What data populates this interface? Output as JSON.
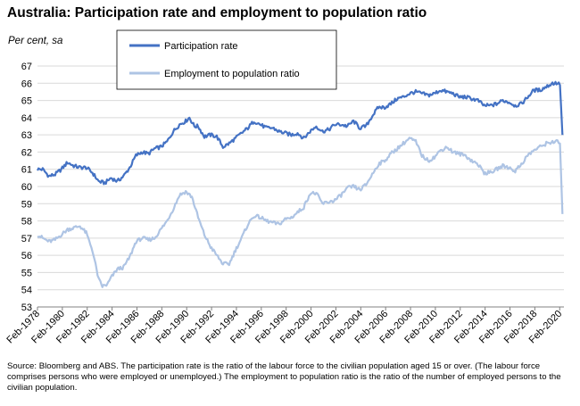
{
  "header": {
    "title": "Australia: Participation rate and employment to population ratio",
    "unit_label": "Per cent, sa"
  },
  "footer": {
    "source": "Source: Bloomberg and ABS.  The participation rate is the ratio of the labour force to the civilian population aged 15 or over. (The labour force comprises persons who were employed or unemployed.)  The employment to population ratio is the ratio of the number of employed persons to the civilian population."
  },
  "colors": {
    "participation": "#4472c4",
    "employment": "#aec4e4",
    "grid": "#d9d9d9",
    "axis": "#808080"
  },
  "chart_data": {
    "type": "line",
    "title": "Australia: Participation rate and employment to population ratio",
    "ylabel": "Per cent, sa",
    "xlabel": "",
    "ylim": [
      53,
      67
    ],
    "yticks": [
      53,
      54,
      55,
      56,
      57,
      58,
      59,
      60,
      61,
      62,
      63,
      64,
      65,
      66,
      67
    ],
    "xlim": [
      1978.08,
      2020.42
    ],
    "xticks": [
      {
        "x": 1978.08,
        "label": "Feb-1978"
      },
      {
        "x": 1980.08,
        "label": "Feb-1980"
      },
      {
        "x": 1982.08,
        "label": "Feb-1982"
      },
      {
        "x": 1984.08,
        "label": "Feb-1984"
      },
      {
        "x": 1986.08,
        "label": "Feb-1986"
      },
      {
        "x": 1988.08,
        "label": "Feb-1988"
      },
      {
        "x": 1990.08,
        "label": "Feb-1990"
      },
      {
        "x": 1992.08,
        "label": "Feb-1992"
      },
      {
        "x": 1994.08,
        "label": "Feb-1994"
      },
      {
        "x": 1996.08,
        "label": "Feb-1996"
      },
      {
        "x": 1998.08,
        "label": "Feb-1998"
      },
      {
        "x": 2000.08,
        "label": "Feb-2000"
      },
      {
        "x": 2002.08,
        "label": "Feb-2002"
      },
      {
        "x": 2004.08,
        "label": "Feb-2004"
      },
      {
        "x": 2006.08,
        "label": "Feb-2006"
      },
      {
        "x": 2008.08,
        "label": "Feb-2008"
      },
      {
        "x": 2010.08,
        "label": "Feb-2010"
      },
      {
        "x": 2012.08,
        "label": "Feb-2012"
      },
      {
        "x": 2014.08,
        "label": "Feb-2014"
      },
      {
        "x": 2016.08,
        "label": "Feb-2016"
      },
      {
        "x": 2018.08,
        "label": "Feb-2018"
      },
      {
        "x": 2020.08,
        "label": "Feb-2020"
      }
    ],
    "legend_position": "top-center",
    "series": [
      {
        "name": "Participation rate",
        "color": "#4472c4",
        "points": [
          [
            1978.08,
            61.0
          ],
          [
            1978.5,
            61.0
          ],
          [
            1979.0,
            60.6
          ],
          [
            1979.5,
            60.7
          ],
          [
            1980.0,
            61.0
          ],
          [
            1980.5,
            61.4
          ],
          [
            1981.0,
            61.2
          ],
          [
            1981.5,
            61.1
          ],
          [
            1982.0,
            61.1
          ],
          [
            1982.5,
            60.8
          ],
          [
            1983.0,
            60.3
          ],
          [
            1983.5,
            60.2
          ],
          [
            1984.0,
            60.5
          ],
          [
            1984.5,
            60.3
          ],
          [
            1985.0,
            60.6
          ],
          [
            1985.5,
            61.1
          ],
          [
            1986.0,
            61.8
          ],
          [
            1986.5,
            62.0
          ],
          [
            1987.0,
            61.9
          ],
          [
            1987.5,
            62.2
          ],
          [
            1988.0,
            62.3
          ],
          [
            1988.5,
            62.6
          ],
          [
            1989.0,
            63.2
          ],
          [
            1989.5,
            63.6
          ],
          [
            1990.0,
            63.8
          ],
          [
            1990.3,
            64.0
          ],
          [
            1990.7,
            63.5
          ],
          [
            1991.0,
            63.5
          ],
          [
            1991.5,
            62.9
          ],
          [
            1992.0,
            63.0
          ],
          [
            1992.5,
            62.9
          ],
          [
            1993.0,
            62.3
          ],
          [
            1993.5,
            62.5
          ],
          [
            1994.0,
            62.8
          ],
          [
            1994.5,
            63.1
          ],
          [
            1995.0,
            63.4
          ],
          [
            1995.5,
            63.8
          ],
          [
            1996.0,
            63.6
          ],
          [
            1996.5,
            63.4
          ],
          [
            1997.0,
            63.4
          ],
          [
            1997.5,
            63.2
          ],
          [
            1998.0,
            63.1
          ],
          [
            1998.5,
            63.0
          ],
          [
            1999.0,
            63.1
          ],
          [
            1999.5,
            62.8
          ],
          [
            2000.0,
            63.2
          ],
          [
            2000.5,
            63.5
          ],
          [
            2001.0,
            63.2
          ],
          [
            2001.5,
            63.3
          ],
          [
            2002.0,
            63.6
          ],
          [
            2002.5,
            63.6
          ],
          [
            2003.0,
            63.5
          ],
          [
            2003.5,
            63.8
          ],
          [
            2004.0,
            63.4
          ],
          [
            2004.5,
            63.5
          ],
          [
            2005.0,
            64.1
          ],
          [
            2005.5,
            64.6
          ],
          [
            2006.0,
            64.6
          ],
          [
            2006.5,
            64.8
          ],
          [
            2007.0,
            65.1
          ],
          [
            2007.5,
            65.2
          ],
          [
            2008.0,
            65.4
          ],
          [
            2008.5,
            65.5
          ],
          [
            2009.0,
            65.4
          ],
          [
            2009.5,
            65.3
          ],
          [
            2010.0,
            65.4
          ],
          [
            2010.5,
            65.6
          ],
          [
            2011.0,
            65.5
          ],
          [
            2011.5,
            65.4
          ],
          [
            2012.0,
            65.2
          ],
          [
            2012.5,
            65.2
          ],
          [
            2013.0,
            65.1
          ],
          [
            2013.5,
            65.0
          ],
          [
            2014.0,
            64.7
          ],
          [
            2014.5,
            64.7
          ],
          [
            2015.0,
            64.8
          ],
          [
            2015.5,
            65.0
          ],
          [
            2016.0,
            64.9
          ],
          [
            2016.5,
            64.7
          ],
          [
            2017.0,
            64.8
          ],
          [
            2017.5,
            65.2
          ],
          [
            2018.0,
            65.6
          ],
          [
            2018.5,
            65.6
          ],
          [
            2019.0,
            65.8
          ],
          [
            2019.5,
            66.0
          ],
          [
            2019.9,
            66.0
          ],
          [
            2020.1,
            65.9
          ],
          [
            2020.2,
            64.5
          ],
          [
            2020.3,
            63.0
          ]
        ]
      },
      {
        "name": "Employment to population ratio",
        "color": "#aec4e4",
        "points": [
          [
            1978.08,
            57.2
          ],
          [
            1978.5,
            57.0
          ],
          [
            1979.0,
            56.8
          ],
          [
            1979.5,
            56.9
          ],
          [
            1980.0,
            57.2
          ],
          [
            1980.5,
            57.5
          ],
          [
            1981.0,
            57.6
          ],
          [
            1981.5,
            57.7
          ],
          [
            1982.0,
            57.3
          ],
          [
            1982.5,
            56.3
          ],
          [
            1983.0,
            54.6
          ],
          [
            1983.3,
            54.2
          ],
          [
            1983.7,
            54.3
          ],
          [
            1984.0,
            54.7
          ],
          [
            1984.5,
            55.2
          ],
          [
            1985.0,
            55.3
          ],
          [
            1985.5,
            55.9
          ],
          [
            1986.0,
            56.8
          ],
          [
            1986.5,
            57.0
          ],
          [
            1987.0,
            56.9
          ],
          [
            1987.5,
            57.0
          ],
          [
            1988.0,
            57.5
          ],
          [
            1988.5,
            58.0
          ],
          [
            1989.0,
            58.7
          ],
          [
            1989.5,
            59.5
          ],
          [
            1990.0,
            59.7
          ],
          [
            1990.5,
            59.4
          ],
          [
            1991.0,
            58.2
          ],
          [
            1991.5,
            57.2
          ],
          [
            1992.0,
            56.5
          ],
          [
            1992.5,
            56.0
          ],
          [
            1993.0,
            55.5
          ],
          [
            1993.5,
            55.5
          ],
          [
            1994.0,
            56.3
          ],
          [
            1994.5,
            57.0
          ],
          [
            1995.0,
            57.8
          ],
          [
            1995.5,
            58.3
          ],
          [
            1996.0,
            58.2
          ],
          [
            1996.5,
            58.0
          ],
          [
            1997.0,
            57.9
          ],
          [
            1997.5,
            57.8
          ],
          [
            1998.0,
            58.1
          ],
          [
            1998.5,
            58.2
          ],
          [
            1999.0,
            58.5
          ],
          [
            1999.5,
            58.8
          ],
          [
            2000.0,
            59.6
          ],
          [
            2000.5,
            59.6
          ],
          [
            2001.0,
            59.0
          ],
          [
            2001.5,
            59.1
          ],
          [
            2002.0,
            59.2
          ],
          [
            2002.5,
            59.5
          ],
          [
            2003.0,
            59.9
          ],
          [
            2003.5,
            60.0
          ],
          [
            2004.0,
            59.8
          ],
          [
            2004.5,
            60.1
          ],
          [
            2005.0,
            60.7
          ],
          [
            2005.5,
            61.3
          ],
          [
            2006.0,
            61.5
          ],
          [
            2006.5,
            61.9
          ],
          [
            2007.0,
            62.2
          ],
          [
            2007.5,
            62.5
          ],
          [
            2008.0,
            62.8
          ],
          [
            2008.5,
            62.6
          ],
          [
            2009.0,
            61.8
          ],
          [
            2009.5,
            61.5
          ],
          [
            2010.0,
            61.7
          ],
          [
            2010.5,
            62.1
          ],
          [
            2011.0,
            62.3
          ],
          [
            2011.5,
            62.0
          ],
          [
            2012.0,
            61.9
          ],
          [
            2012.5,
            61.8
          ],
          [
            2013.0,
            61.5
          ],
          [
            2013.5,
            61.3
          ],
          [
            2014.0,
            60.8
          ],
          [
            2014.5,
            60.8
          ],
          [
            2015.0,
            61.0
          ],
          [
            2015.5,
            61.2
          ],
          [
            2016.0,
            61.1
          ],
          [
            2016.5,
            60.9
          ],
          [
            2017.0,
            61.3
          ],
          [
            2017.5,
            61.8
          ],
          [
            2018.0,
            62.1
          ],
          [
            2018.5,
            62.3
          ],
          [
            2019.0,
            62.5
          ],
          [
            2019.5,
            62.6
          ],
          [
            2019.9,
            62.6
          ],
          [
            2020.1,
            62.5
          ],
          [
            2020.2,
            60.5
          ],
          [
            2020.3,
            58.4
          ]
        ]
      }
    ]
  }
}
